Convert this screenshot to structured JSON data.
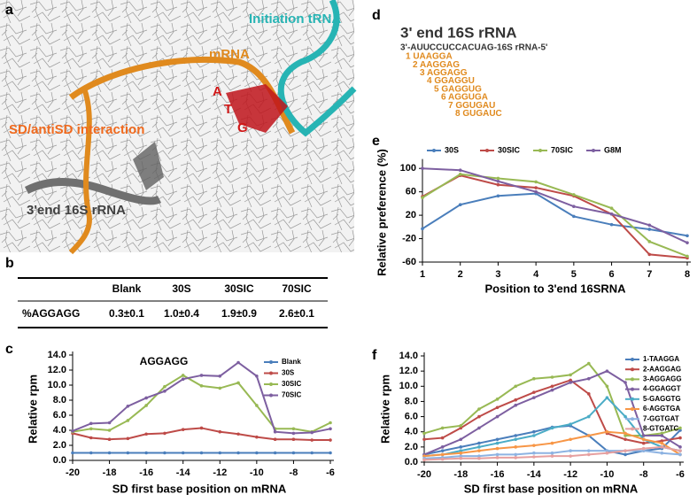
{
  "panel_labels": [
    "a",
    "b",
    "c",
    "d",
    "e",
    "f"
  ],
  "structure_labels": {
    "mrna": "mRNA",
    "trna": "Initiation  tRNA",
    "sd": "SD/antiSD interaction",
    "rrna": "3'end 16S rRNA",
    "codon": [
      "A",
      "T",
      "G"
    ]
  },
  "table": {
    "columns": [
      "Blank",
      "30S",
      "30SIC",
      "70SIC"
    ],
    "rows": [
      {
        "label": "%AGGAGG",
        "values": [
          "0.3±0.1",
          "1.0±0.4",
          "1.9±0.9",
          "2.6±0.1"
        ]
      }
    ]
  },
  "sequence_panel": {
    "title": "3' end 16S rRNA",
    "sequence": "3'-AUUCCUCCACUAG-16S rRNA-5'",
    "items": [
      "1  UAAGGA",
      "2  AAGGAG",
      "3  AGGAGG",
      "4  GGAGGU",
      "5  GAGGUG",
      "6  AGGUGA",
      "7  GGUGAU",
      "8  GUGAUC"
    ]
  },
  "chart_data": [
    {
      "type": "line",
      "title": "AGGAGG",
      "xlabel": "SD first base position on mRNA",
      "ylabel": "Relative rpm",
      "x": [
        -20,
        -19,
        -18,
        -17,
        -16,
        -15,
        -14,
        -13,
        -12,
        -11,
        -10,
        -9,
        -8,
        -7,
        -6
      ],
      "xlim": [
        -20,
        -6
      ],
      "xticks": [
        -20,
        -18,
        -16,
        -14,
        -12,
        -10,
        -8,
        -6
      ],
      "ylim": [
        0,
        14
      ],
      "yticks": [
        {
          "value": 0,
          "label": "0.0"
        },
        {
          "value": 2,
          "label": "2.0"
        },
        {
          "value": 4,
          "label": "4.0"
        },
        {
          "value": 6,
          "label": "6.0"
        },
        {
          "value": 8,
          "label": "8.0"
        },
        {
          "value": 10,
          "label": "10.0"
        },
        {
          "value": 12,
          "label": "12.0"
        },
        {
          "value": 14,
          "label": "14.0"
        }
      ],
      "grid": false,
      "legend": "upper right",
      "series": [
        {
          "name": "Blank",
          "color": "#4a7ebb",
          "values": [
            1,
            1,
            1,
            1,
            1,
            1,
            1,
            1,
            1,
            1,
            1,
            1,
            1,
            1,
            1
          ]
        },
        {
          "name": "30S",
          "color": "#be4b48",
          "values": [
            3.6,
            3.0,
            2.8,
            2.9,
            3.5,
            3.6,
            4.1,
            4.3,
            3.8,
            3.5,
            3.1,
            2.8,
            2.8,
            2.7,
            2.7
          ]
        },
        {
          "name": "30SIC",
          "color": "#98b954",
          "values": [
            3.8,
            4.2,
            4.0,
            5.3,
            7.3,
            9.8,
            11.3,
            9.9,
            9.6,
            10.3,
            7.3,
            4.2,
            4.2,
            3.8,
            5.0
          ]
        },
        {
          "name": "70SIC",
          "color": "#7d5fa0",
          "values": [
            3.9,
            4.9,
            5.0,
            7.2,
            8.3,
            9.2,
            10.8,
            11.3,
            11.2,
            13.0,
            11.2,
            3.8,
            3.6,
            3.7,
            4.2
          ]
        }
      ]
    },
    {
      "type": "line",
      "xlabel": "Position to 3'end 16SRNA",
      "ylabel": "Relative preference (%)",
      "x": [
        1,
        2,
        3,
        4,
        5,
        6,
        7,
        8
      ],
      "xlim": [
        1,
        8
      ],
      "xticks": [
        1,
        2,
        3,
        4,
        5,
        6,
        7,
        8
      ],
      "ylim": [
        -60,
        110
      ],
      "yticks": [
        -60,
        -20,
        20,
        60,
        100
      ],
      "grid": false,
      "legend": "top",
      "series": [
        {
          "name": "30S",
          "color": "#4a7ebb",
          "values": [
            -3,
            38,
            53,
            57,
            18,
            4,
            -4,
            -15
          ]
        },
        {
          "name": "30SIC",
          "color": "#be4b48",
          "values": [
            52,
            88,
            72,
            67,
            53,
            22,
            -47,
            -53
          ]
        },
        {
          "name": "70SIC",
          "color": "#98b954",
          "values": [
            50,
            90,
            83,
            77,
            55,
            32,
            -25,
            -50
          ]
        },
        {
          "name": "G8M",
          "color": "#7d5fa0",
          "values": [
            100,
            97,
            78,
            60,
            35,
            22,
            3,
            -27
          ]
        }
      ]
    },
    {
      "type": "line",
      "xlabel": "SD first base position on mRNA",
      "ylabel": "Relative rpm",
      "x": [
        -20,
        -19,
        -18,
        -17,
        -16,
        -15,
        -14,
        -13,
        -12,
        -11,
        -10,
        -9,
        -8,
        -7,
        -6
      ],
      "xlim": [
        -20,
        -6
      ],
      "xticks": [
        -20,
        -18,
        -16,
        -14,
        -12,
        -10,
        -8,
        -6
      ],
      "ylim": [
        0,
        14
      ],
      "yticks": [
        {
          "value": 0,
          "label": "0.0"
        },
        {
          "value": 2,
          "label": "2.0"
        },
        {
          "value": 4,
          "label": "4.0"
        },
        {
          "value": 6,
          "label": "6.0"
        },
        {
          "value": 8,
          "label": "8.0"
        },
        {
          "value": 10,
          "label": "10.0"
        },
        {
          "value": 12,
          "label": "12.0"
        },
        {
          "value": 14,
          "label": "14.0"
        }
      ],
      "grid": false,
      "legend": "upper right",
      "series": [
        {
          "name": "1-TAAGGA",
          "color": "#4a7ebb",
          "values": [
            1.0,
            1.5,
            2.0,
            2.5,
            3.0,
            3.5,
            4.0,
            4.6,
            4.8,
            3.5,
            1.5,
            1.0,
            1.5,
            1.8,
            4.2
          ]
        },
        {
          "name": "2-AAGGAG",
          "color": "#be4b48",
          "values": [
            3.0,
            3.2,
            4.5,
            6.0,
            7.2,
            8.2,
            9.2,
            10.0,
            10.8,
            9.0,
            3.8,
            3.0,
            2.5,
            2.8,
            3.2
          ]
        },
        {
          "name": "3-AGGAGG",
          "color": "#98b954",
          "values": [
            3.8,
            4.5,
            4.8,
            7.0,
            8.3,
            10.0,
            11.0,
            11.2,
            11.5,
            13.0,
            10.0,
            3.5,
            3.5,
            3.8,
            4.5
          ]
        },
        {
          "name": "4-GGAGGT",
          "color": "#7d5fa0",
          "values": [
            1.0,
            2.0,
            3.0,
            4.5,
            6.0,
            7.5,
            8.5,
            9.5,
            10.5,
            11.0,
            12.0,
            10.5,
            3.5,
            3.5,
            2.0
          ]
        },
        {
          "name": "5-GAGGTG",
          "color": "#4bacc6",
          "values": [
            0.8,
            1.0,
            1.5,
            2.0,
            2.5,
            3.0,
            3.5,
            4.5,
            5.0,
            6.0,
            8.5,
            6.0,
            3.0,
            2.0,
            1.5
          ]
        },
        {
          "name": "6-AGGTGA",
          "color": "#f79646",
          "values": [
            0.8,
            1.0,
            1.2,
            1.5,
            1.8,
            2.0,
            2.2,
            2.5,
            3.0,
            3.5,
            4.0,
            3.8,
            3.0,
            2.5,
            1.0
          ]
        },
        {
          "name": "7-GGTGAT",
          "color": "#8db3e2",
          "values": [
            0.5,
            0.6,
            0.8,
            0.8,
            1.0,
            1.0,
            1.2,
            1.2,
            1.5,
            1.5,
            1.5,
            1.5,
            1.5,
            1.2,
            1.0
          ]
        },
        {
          "name": "8-GTGATC",
          "color": "#e6a0a0",
          "values": [
            0.3,
            0.4,
            0.5,
            0.5,
            0.6,
            0.6,
            0.7,
            0.8,
            0.8,
            1.0,
            1.2,
            1.5,
            1.8,
            2.0,
            1.5
          ]
        }
      ]
    }
  ]
}
